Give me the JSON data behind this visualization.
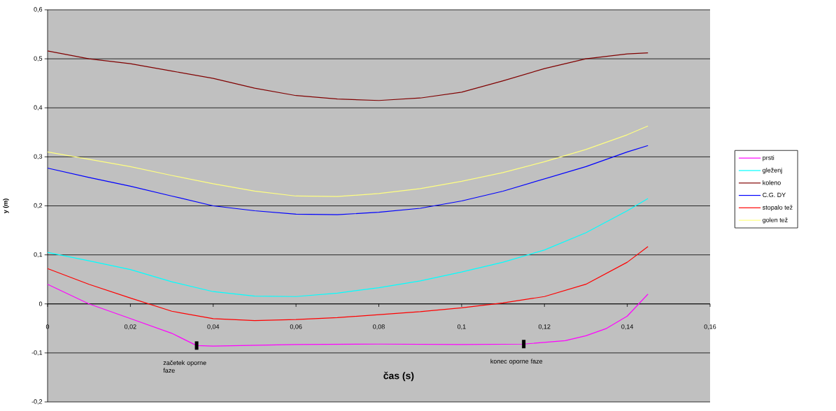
{
  "chart_data": {
    "type": "line",
    "xlabel": "čas (s)",
    "ylabel": "y (m)",
    "x": [
      0,
      0.01,
      0.02,
      0.03,
      0.04,
      0.05,
      0.06,
      0.07,
      0.08,
      0.09,
      0.1,
      0.11,
      0.12,
      0.13,
      0.14,
      0.145
    ],
    "series": [
      {
        "name": "prsti",
        "color": "#ff00ff",
        "x": [
          0,
          0.01,
          0.02,
          0.03,
          0.036,
          0.04,
          0.06,
          0.08,
          0.1,
          0.115,
          0.125,
          0.13,
          0.135,
          0.14,
          0.145
        ],
        "values": [
          0.04,
          0.0,
          -0.03,
          -0.06,
          -0.085,
          -0.086,
          -0.083,
          -0.082,
          -0.083,
          -0.082,
          -0.075,
          -0.065,
          -0.05,
          -0.025,
          0.02
        ]
      },
      {
        "name": "gleženj",
        "color": "#00ffff",
        "values": [
          0.105,
          0.088,
          0.07,
          0.045,
          0.025,
          0.016,
          0.015,
          0.022,
          0.033,
          0.047,
          0.065,
          0.085,
          0.11,
          0.145,
          0.19,
          0.215
        ]
      },
      {
        "name": "koleno",
        "color": "#800000",
        "values": [
          0.516,
          0.5,
          0.49,
          0.475,
          0.46,
          0.44,
          0.425,
          0.418,
          0.415,
          0.42,
          0.432,
          0.455,
          0.48,
          0.5,
          0.51,
          0.512
        ]
      },
      {
        "name": "C.G. DY",
        "color": "#0000ff",
        "values": [
          0.277,
          0.258,
          0.24,
          0.22,
          0.2,
          0.19,
          0.183,
          0.182,
          0.187,
          0.195,
          0.21,
          0.23,
          0.255,
          0.28,
          0.31,
          0.323
        ]
      },
      {
        "name": "stopalo tež",
        "color": "#ff0000",
        "values": [
          0.072,
          0.04,
          0.012,
          -0.015,
          -0.03,
          -0.034,
          -0.032,
          -0.028,
          -0.022,
          -0.016,
          -0.008,
          0.002,
          0.015,
          0.04,
          0.085,
          0.117
        ]
      },
      {
        "name": "golen tež",
        "color": "#ffff80",
        "values": [
          0.31,
          0.295,
          0.28,
          0.262,
          0.245,
          0.23,
          0.22,
          0.219,
          0.225,
          0.235,
          0.25,
          0.268,
          0.29,
          0.315,
          0.345,
          0.363
        ]
      }
    ],
    "annotations": [
      {
        "text": "začetek oporne faze",
        "x": 0.036,
        "y": -0.085
      },
      {
        "text": "konec oporne faze",
        "x": 0.115,
        "y": -0.082
      }
    ],
    "xlim": [
      0,
      0.16
    ],
    "xticks": [
      0,
      {
        "value": 0.02,
        "label": "0,02"
      },
      {
        "value": 0.04,
        "label": "0,04"
      },
      {
        "value": 0.06,
        "label": "0,06"
      },
      {
        "value": 0.08,
        "label": "0,08"
      },
      {
        "value": 0.1,
        "label": "0,1"
      },
      {
        "value": 0.12,
        "label": "0,12"
      },
      {
        "value": 0.14,
        "label": "0,14"
      },
      {
        "value": 0.16,
        "label": "0,16"
      }
    ],
    "ylim": [
      -0.2,
      0.6
    ],
    "yticks": [
      {
        "value": -0.2,
        "label": "-0,2"
      },
      {
        "value": -0.1,
        "label": "-0,1"
      },
      0,
      {
        "value": 0.1,
        "label": "0,1"
      },
      {
        "value": 0.2,
        "label": "0,2"
      },
      {
        "value": 0.3,
        "label": "0,3"
      },
      {
        "value": 0.4,
        "label": "0,4"
      },
      {
        "value": 0.5,
        "label": "0,5"
      },
      {
        "value": 0.6,
        "label": "0,6"
      }
    ],
    "grid": "y",
    "legend": "right",
    "marker": "none",
    "line_style": "solid"
  }
}
